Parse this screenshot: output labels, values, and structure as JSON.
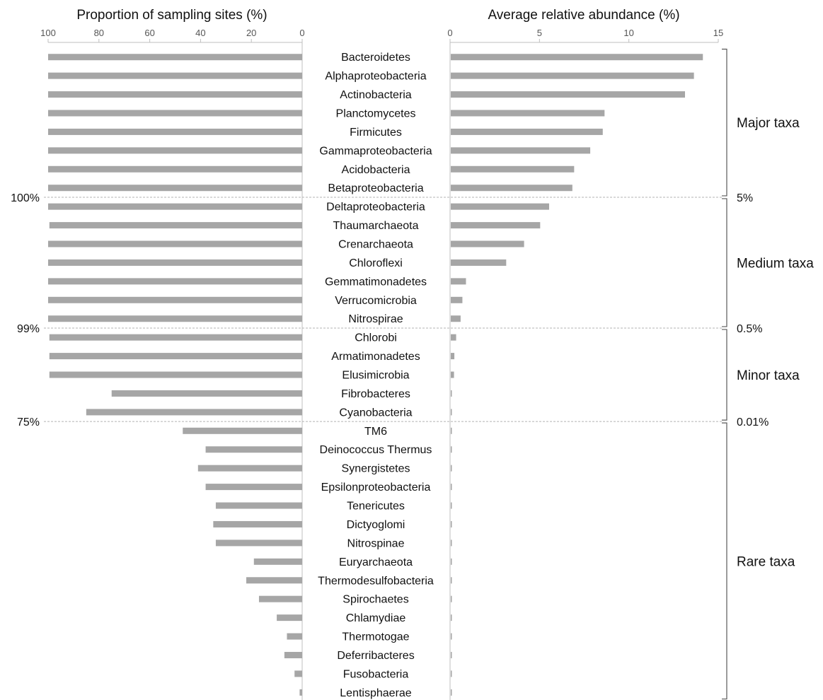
{
  "chart_data": [
    {
      "type": "bar",
      "orientation": "horizontal-reversed",
      "title": "Proportion of sampling sites (%)",
      "xlim": [
        0,
        100
      ],
      "xticks": [
        "100",
        "80",
        "60",
        "40",
        "20",
        "0"
      ],
      "categories": [
        "Bacteroidetes",
        "Alphaproteobacteria",
        "Actinobacteria",
        "Planctomycetes",
        "Firmicutes",
        "Gammaproteobacteria",
        "Acidobacteria",
        "Betaproteobacteria",
        "Deltaproteobacteria",
        "Thaumarchaeota",
        "Crenarchaeota",
        "Chloroflexi",
        "Gemmatimonadetes",
        "Verrucomicrobia",
        "Nitrospirae",
        "Chlorobi",
        "Armatimonadetes",
        "Elusimicrobia",
        "Fibrobacteres",
        "Cyanobacteria",
        "TM6",
        "Deinococcus Thermus",
        "Synergistetes",
        "Epsilonproteobacteria",
        "Tenericutes",
        "Dictyoglomi",
        "Nitrospinae",
        "Euryarchaeota",
        "Thermodesulfobacteria",
        "Spirochaetes",
        "Chlamydiae",
        "Thermotogae",
        "Deferribacteres",
        "Fusobacteria",
        "Lentisphaerae"
      ],
      "values": [
        100,
        100,
        100,
        100,
        100,
        100,
        100,
        100,
        100,
        99.5,
        100,
        100,
        100,
        100,
        100,
        99.5,
        99.5,
        99.5,
        75,
        85,
        47,
        38,
        41,
        38,
        34,
        35,
        34,
        19,
        22,
        17,
        10,
        6,
        7,
        3,
        1
      ],
      "grid": false
    },
    {
      "type": "bar",
      "orientation": "horizontal",
      "title": "Average relative abundance (%)",
      "xlim": [
        0,
        15
      ],
      "xticks": [
        "0",
        "5",
        "10",
        "15"
      ],
      "categories": [
        "Bacteroidetes",
        "Alphaproteobacteria",
        "Actinobacteria",
        "Planctomycetes",
        "Firmicutes",
        "Gammaproteobacteria",
        "Acidobacteria",
        "Betaproteobacteria",
        "Deltaproteobacteria",
        "Thaumarchaeota",
        "Crenarchaeota",
        "Chloroflexi",
        "Gemmatimonadetes",
        "Verrucomicrobia",
        "Nitrospirae",
        "Chlorobi",
        "Armatimonadetes",
        "Elusimicrobia",
        "Fibrobacteres",
        "Cyanobacteria",
        "TM6",
        "Deinococcus Thermus",
        "Synergistetes",
        "Epsilonproteobacteria",
        "Tenericutes",
        "Dictyoglomi",
        "Nitrospinae",
        "Euryarchaeota",
        "Thermodesulfobacteria",
        "Spirochaetes",
        "Chlamydiae",
        "Thermotogae",
        "Deferribacteres",
        "Fusobacteria",
        "Lentisphaerae"
      ],
      "values": [
        14.1,
        13.6,
        13.1,
        8.6,
        8.5,
        7.8,
        6.9,
        6.8,
        5.5,
        5.0,
        4.1,
        3.1,
        0.85,
        0.65,
        0.55,
        0.3,
        0.2,
        0.18,
        0.05,
        0.05,
        0.05,
        0.05,
        0.05,
        0.05,
        0.05,
        0.05,
        0.05,
        0.05,
        0.05,
        0.05,
        0.05,
        0.05,
        0.05,
        0.05,
        0.05
      ],
      "grid": false
    }
  ],
  "groups": [
    {
      "label": "Major taxa",
      "from": 0,
      "to": 7
    },
    {
      "label": "Medium taxa",
      "from": 8,
      "to": 14
    },
    {
      "label": "Minor taxa",
      "from": 15,
      "to": 19
    },
    {
      "label": "Rare taxa",
      "from": 20,
      "to": 34
    }
  ],
  "thresholds": [
    {
      "after_index": 7,
      "left_label": "100%",
      "right_label": "5%"
    },
    {
      "after_index": 14,
      "left_label": "99%",
      "right_label": "0.5%"
    },
    {
      "after_index": 19,
      "left_label": "75%",
      "right_label": "0.01%"
    }
  ],
  "colors": {
    "bar": "#a6a6a6",
    "axis": "#bfbfbf",
    "divider": "#b3b3b3",
    "bracket": "#595959"
  }
}
